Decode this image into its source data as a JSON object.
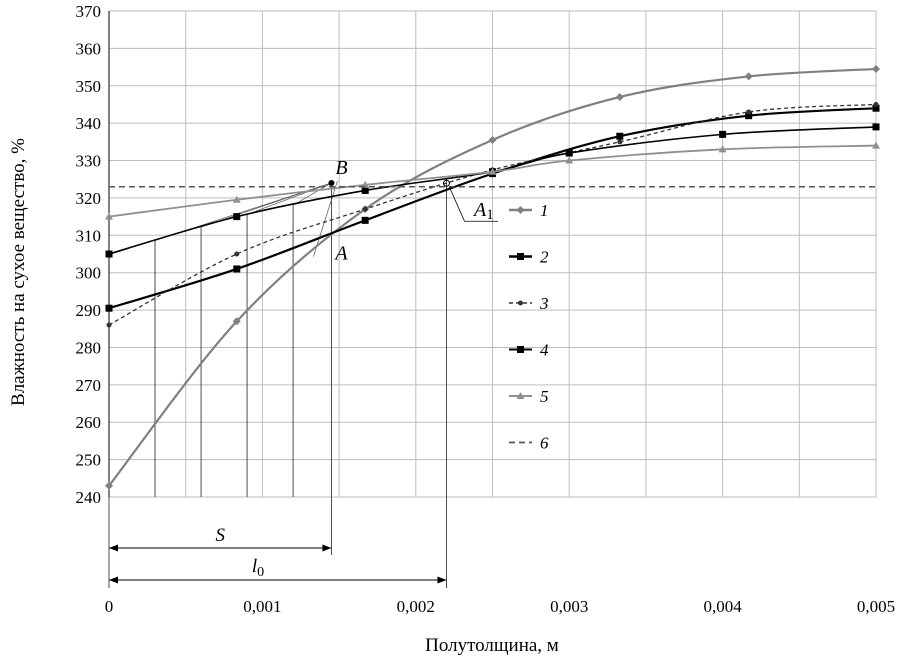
{
  "chart_data": {
    "type": "line",
    "xlabel": "Полутолщина, м",
    "ylabel": "Влажность на сухое вещество, %",
    "xlim": [
      0,
      0.005
    ],
    "ylim": [
      240,
      370
    ],
    "x_ticks": [
      {
        "value": 0,
        "label": "0"
      },
      {
        "value": 0.001,
        "label": "0,001"
      },
      {
        "value": 0.002,
        "label": "0,002"
      },
      {
        "value": 0.003,
        "label": "0,003"
      },
      {
        "value": 0.004,
        "label": "0,004"
      },
      {
        "value": 0.005,
        "label": "0,005"
      }
    ],
    "y_ticks": [
      240,
      250,
      260,
      270,
      280,
      290,
      300,
      310,
      320,
      330,
      340,
      350,
      360,
      370
    ],
    "grid": true,
    "legend_position": "right",
    "series": [
      {
        "name": "1",
        "color": "#808080",
        "marker": "diamond",
        "dash": "",
        "x": [
          0,
          0.000833,
          0.00167,
          0.0025,
          0.00333,
          0.00417,
          0.005
        ],
        "y": [
          243,
          287,
          317,
          335.5,
          347,
          352.5,
          354.5
        ]
      },
      {
        "name": "2",
        "color": "#000000",
        "marker": "square",
        "dash": "",
        "x": [
          0,
          0.000833,
          0.00167,
          0.0025,
          0.00333,
          0.00417,
          0.005
        ],
        "y": [
          290.5,
          301,
          314,
          326.5,
          336.5,
          342,
          344
        ]
      },
      {
        "name": "3",
        "color": "#333333",
        "marker": "dot",
        "dash": "4,3",
        "x": [
          0,
          0.000833,
          0.00167,
          0.0025,
          0.00333,
          0.00417,
          0.005
        ],
        "y": [
          286,
          305,
          317,
          327.5,
          335,
          343,
          345
        ]
      },
      {
        "name": "4",
        "color": "#000000",
        "marker": "square",
        "dash": "",
        "x": [
          0,
          0.000833,
          0.00167,
          0.0025,
          0.003,
          0.004,
          0.005
        ],
        "y": [
          305,
          315,
          322,
          327,
          332,
          337,
          339
        ]
      },
      {
        "name": "5",
        "color": "#909090",
        "marker": "triangle",
        "dash": "",
        "x": [
          0,
          0.000833,
          0.00167,
          0.0025,
          0.003,
          0.004,
          0.005
        ],
        "y": [
          315,
          319.5,
          323.5,
          327,
          330,
          333,
          334
        ]
      },
      {
        "name": "6",
        "color": "#555555",
        "marker": "none",
        "dash": "6,4",
        "x": [
          0,
          0.005
        ],
        "y": [
          323,
          323
        ]
      }
    ],
    "annotations": [
      {
        "text": "B",
        "x": 0.00145,
        "y": 324
      },
      {
        "text": "A",
        "x": 0.00145,
        "y": 311
      },
      {
        "text": "A",
        "sub": "1",
        "x": 0.0022,
        "y": 325
      },
      {
        "text": "S",
        "from": 0,
        "to": 0.00145
      },
      {
        "text": "l",
        "sub": "0",
        "from": 0,
        "to": 0.0022
      }
    ]
  }
}
